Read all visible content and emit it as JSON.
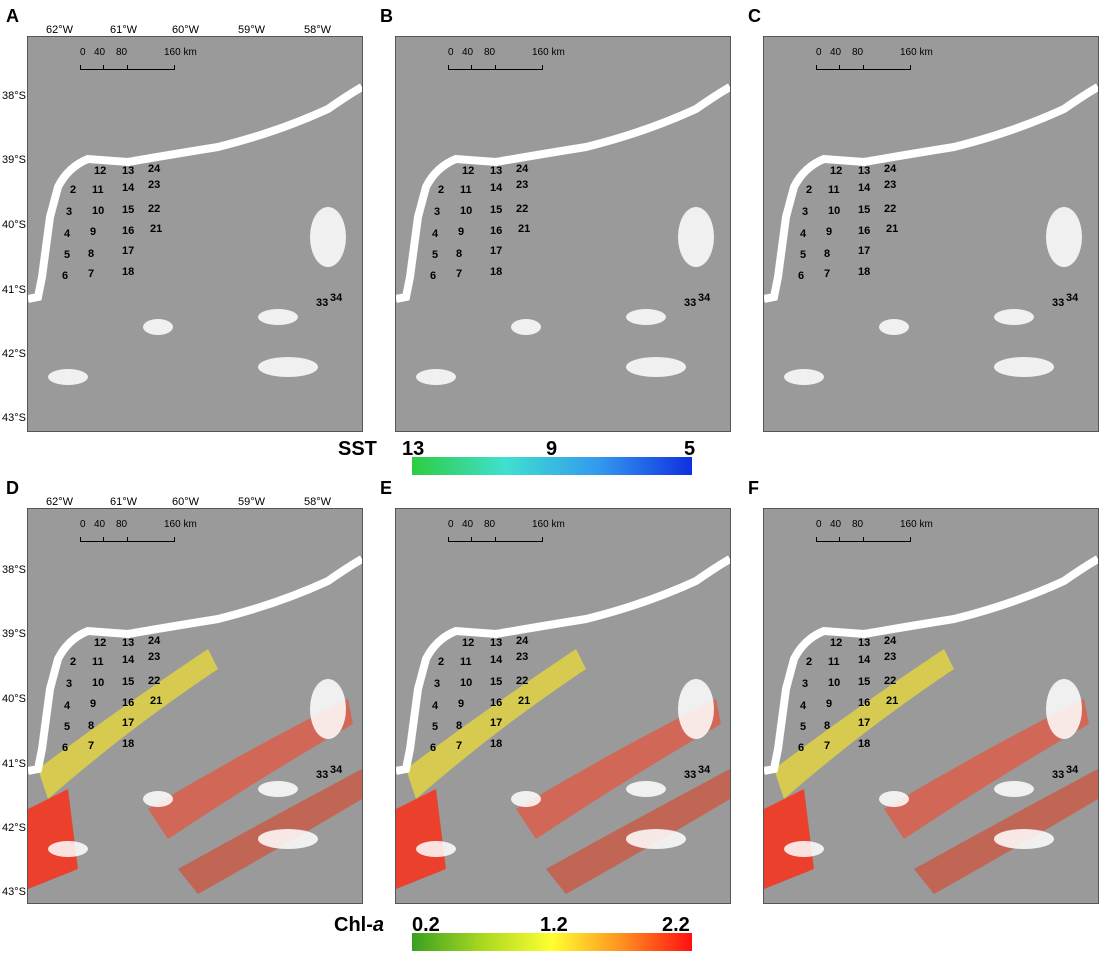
{
  "panels": [
    {
      "letter": "A",
      "variable": "sst",
      "show_lat": true,
      "show_lon": true
    },
    {
      "letter": "B",
      "variable": "sst",
      "show_lat": false,
      "show_lon": false
    },
    {
      "letter": "C",
      "variable": "sst",
      "show_lat": false,
      "show_lon": false
    },
    {
      "letter": "D",
      "variable": "chl",
      "show_lat": true,
      "show_lon": true
    },
    {
      "letter": "E",
      "variable": "chl",
      "show_lat": false,
      "show_lon": false
    },
    {
      "letter": "F",
      "variable": "chl",
      "show_lat": false,
      "show_lon": false
    }
  ],
  "lon_labels": [
    "62°W",
    "61°W",
    "60°W",
    "59°W",
    "58°W"
  ],
  "lat_labels": [
    "38°S",
    "39°S",
    "40°S",
    "41°S",
    "42°S",
    "43°S"
  ],
  "scale_bar": {
    "ticks": [
      "0",
      "40",
      "80",
      "160 km"
    ]
  },
  "stations": [
    "2",
    "3",
    "4",
    "5",
    "6",
    "7",
    "8",
    "9",
    "10",
    "11",
    "12",
    "13",
    "14",
    "15",
    "16",
    "17",
    "18",
    "21",
    "22",
    "23",
    "24",
    "33",
    "34"
  ],
  "colorbars": {
    "sst": {
      "title": "SST",
      "ticks": [
        "13",
        "9",
        "5"
      ],
      "colors": [
        "#2ecc40",
        "#3fe0d0",
        "#3399ee",
        "#1030e0"
      ]
    },
    "chl": {
      "title_main": "Chl-",
      "title_italic": "a",
      "ticks": [
        "0.2",
        "1.2",
        "2.2"
      ],
      "colors": [
        "#3aa020",
        "#a8d820",
        "#ffff30",
        "#ff9020",
        "#ff1010"
      ]
    }
  },
  "colors": {
    "land": "#9a9a9a",
    "cloud": "#ffffff"
  }
}
